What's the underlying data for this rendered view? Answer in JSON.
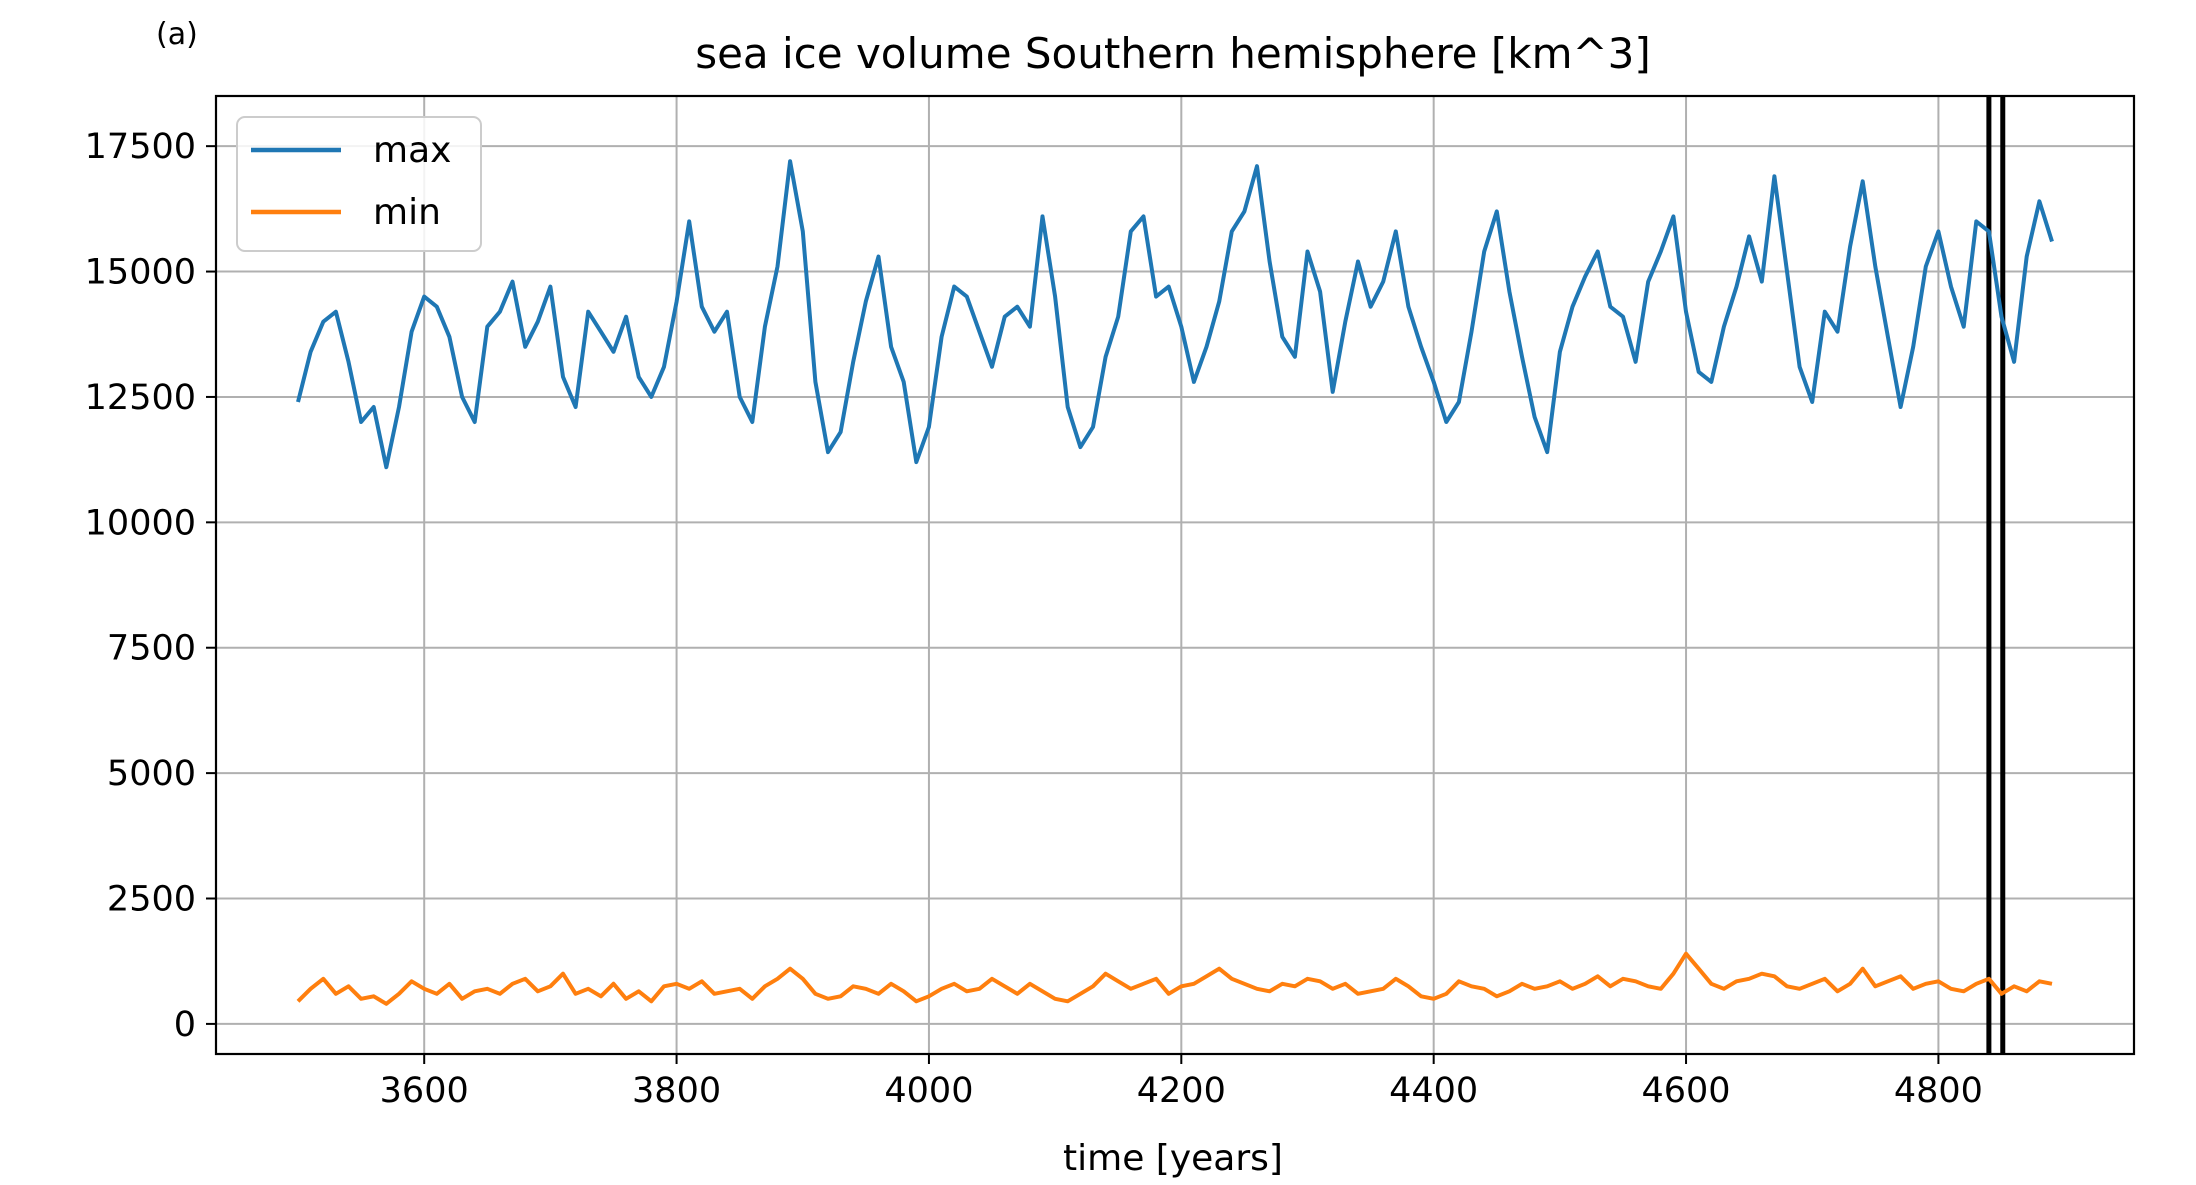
{
  "chart_data": {
    "type": "line",
    "panel_label": "(a)",
    "title": "sea ice volume Southern hemisphere [km^3]",
    "xlabel": "time [years]",
    "ylabel": "",
    "xlim": [
      3435,
      4955
    ],
    "ylim": [
      -600,
      18500
    ],
    "xticks": [
      3600,
      3800,
      4000,
      4200,
      4400,
      4600,
      4800
    ],
    "yticks": [
      0,
      2500,
      5000,
      7500,
      10000,
      12500,
      15000,
      17500
    ],
    "grid": true,
    "legend_position": "top-left",
    "vertical_lines": [
      4840,
      4851
    ],
    "colors": {
      "max": "#1f77b4",
      "min": "#ff7f0e",
      "vline": "#000000"
    },
    "series": [
      {
        "name": "max",
        "x": [
          3500,
          3510,
          3520,
          3530,
          3540,
          3550,
          3560,
          3570,
          3580,
          3590,
          3600,
          3610,
          3620,
          3630,
          3640,
          3650,
          3660,
          3670,
          3680,
          3690,
          3700,
          3710,
          3720,
          3730,
          3740,
          3750,
          3760,
          3770,
          3780,
          3790,
          3800,
          3810,
          3820,
          3830,
          3840,
          3850,
          3860,
          3870,
          3880,
          3890,
          3900,
          3910,
          3920,
          3930,
          3940,
          3950,
          3960,
          3970,
          3980,
          3990,
          4000,
          4010,
          4020,
          4030,
          4040,
          4050,
          4060,
          4070,
          4080,
          4090,
          4100,
          4110,
          4120,
          4130,
          4140,
          4150,
          4160,
          4170,
          4180,
          4190,
          4200,
          4210,
          4220,
          4230,
          4240,
          4250,
          4260,
          4270,
          4280,
          4290,
          4300,
          4310,
          4320,
          4330,
          4340,
          4350,
          4360,
          4370,
          4380,
          4390,
          4400,
          4410,
          4420,
          4430,
          4440,
          4450,
          4460,
          4470,
          4480,
          4490,
          4500,
          4510,
          4520,
          4530,
          4540,
          4550,
          4560,
          4570,
          4580,
          4590,
          4600,
          4610,
          4620,
          4630,
          4640,
          4650,
          4660,
          4670,
          4680,
          4690,
          4700,
          4710,
          4720,
          4730,
          4740,
          4750,
          4760,
          4770,
          4780,
          4790,
          4800,
          4810,
          4820,
          4830,
          4840,
          4850,
          4860,
          4870,
          4880,
          4890
        ],
        "values": [
          12400,
          13400,
          14000,
          14200,
          13200,
          12000,
          12300,
          11100,
          12300,
          13800,
          14500,
          14300,
          13700,
          12500,
          12000,
          13900,
          14200,
          14800,
          13500,
          14000,
          14700,
          12900,
          12300,
          14200,
          13800,
          13400,
          14100,
          12900,
          12500,
          13100,
          14400,
          16000,
          14300,
          13800,
          14200,
          12500,
          12000,
          13900,
          15100,
          17200,
          15800,
          12800,
          11400,
          11800,
          13200,
          14400,
          15300,
          13500,
          12800,
          11200,
          11900,
          13700,
          14700,
          14500,
          13800,
          13100,
          14100,
          14300,
          13900,
          16100,
          14500,
          12300,
          11500,
          11900,
          13300,
          14100,
          15800,
          16100,
          14500,
          14700,
          13900,
          12800,
          13500,
          14400,
          15800,
          16200,
          17100,
          15200,
          13700,
          13300,
          15400,
          14600,
          12600,
          14000,
          15200,
          14300,
          14800,
          15800,
          14300,
          13500,
          12800,
          12000,
          12400,
          13800,
          15400,
          16200,
          14600,
          13300,
          12100,
          11400,
          13400,
          14300,
          14900,
          15400,
          14300,
          14100,
          13200,
          14800,
          15400,
          16100,
          14200,
          13000,
          12800,
          13900,
          14700,
          15700,
          14800,
          16900,
          15000,
          13100,
          12400,
          14200,
          13800,
          15500,
          16800,
          15100,
          13700,
          12300,
          13500,
          15100,
          15800,
          14700,
          13900,
          16000,
          15800,
          14100,
          13200,
          15300,
          16400,
          15600
        ]
      },
      {
        "name": "min",
        "x": [
          3500,
          3510,
          3520,
          3530,
          3540,
          3550,
          3560,
          3570,
          3580,
          3590,
          3600,
          3610,
          3620,
          3630,
          3640,
          3650,
          3660,
          3670,
          3680,
          3690,
          3700,
          3710,
          3720,
          3730,
          3740,
          3750,
          3760,
          3770,
          3780,
          3790,
          3800,
          3810,
          3820,
          3830,
          3840,
          3850,
          3860,
          3870,
          3880,
          3890,
          3900,
          3910,
          3920,
          3930,
          3940,
          3950,
          3960,
          3970,
          3980,
          3990,
          4000,
          4010,
          4020,
          4030,
          4040,
          4050,
          4060,
          4070,
          4080,
          4090,
          4100,
          4110,
          4120,
          4130,
          4140,
          4150,
          4160,
          4170,
          4180,
          4190,
          4200,
          4210,
          4220,
          4230,
          4240,
          4250,
          4260,
          4270,
          4280,
          4290,
          4300,
          4310,
          4320,
          4330,
          4340,
          4350,
          4360,
          4370,
          4380,
          4390,
          4400,
          4410,
          4420,
          4430,
          4440,
          4450,
          4460,
          4470,
          4480,
          4490,
          4500,
          4510,
          4520,
          4530,
          4540,
          4550,
          4560,
          4570,
          4580,
          4590,
          4600,
          4610,
          4620,
          4630,
          4640,
          4650,
          4660,
          4670,
          4680,
          4690,
          4700,
          4710,
          4720,
          4730,
          4740,
          4750,
          4760,
          4770,
          4780,
          4790,
          4800,
          4810,
          4820,
          4830,
          4840,
          4850,
          4860,
          4870,
          4880,
          4890
        ],
        "values": [
          450,
          700,
          900,
          600,
          750,
          500,
          550,
          400,
          600,
          850,
          700,
          600,
          800,
          500,
          650,
          700,
          600,
          800,
          900,
          650,
          750,
          1000,
          600,
          700,
          550,
          800,
          500,
          650,
          450,
          750,
          800,
          700,
          850,
          600,
          650,
          700,
          500,
          750,
          900,
          1100,
          900,
          600,
          500,
          550,
          750,
          700,
          600,
          800,
          650,
          450,
          550,
          700,
          800,
          650,
          700,
          900,
          750,
          600,
          800,
          650,
          500,
          450,
          600,
          750,
          1000,
          850,
          700,
          800,
          900,
          600,
          750,
          800,
          950,
          1100,
          900,
          800,
          700,
          650,
          800,
          750,
          900,
          850,
          700,
          800,
          600,
          650,
          700,
          900,
          750,
          550,
          500,
          600,
          850,
          750,
          700,
          550,
          650,
          800,
          700,
          750,
          850,
          700,
          800,
          950,
          750,
          900,
          850,
          750,
          700,
          1000,
          1400,
          1100,
          800,
          700,
          850,
          900,
          1000,
          950,
          750,
          700,
          800,
          900,
          650,
          800,
          1100,
          750,
          850,
          950,
          700,
          800,
          850,
          700,
          650,
          800,
          900,
          600,
          750,
          650,
          850,
          800
        ]
      }
    ]
  }
}
